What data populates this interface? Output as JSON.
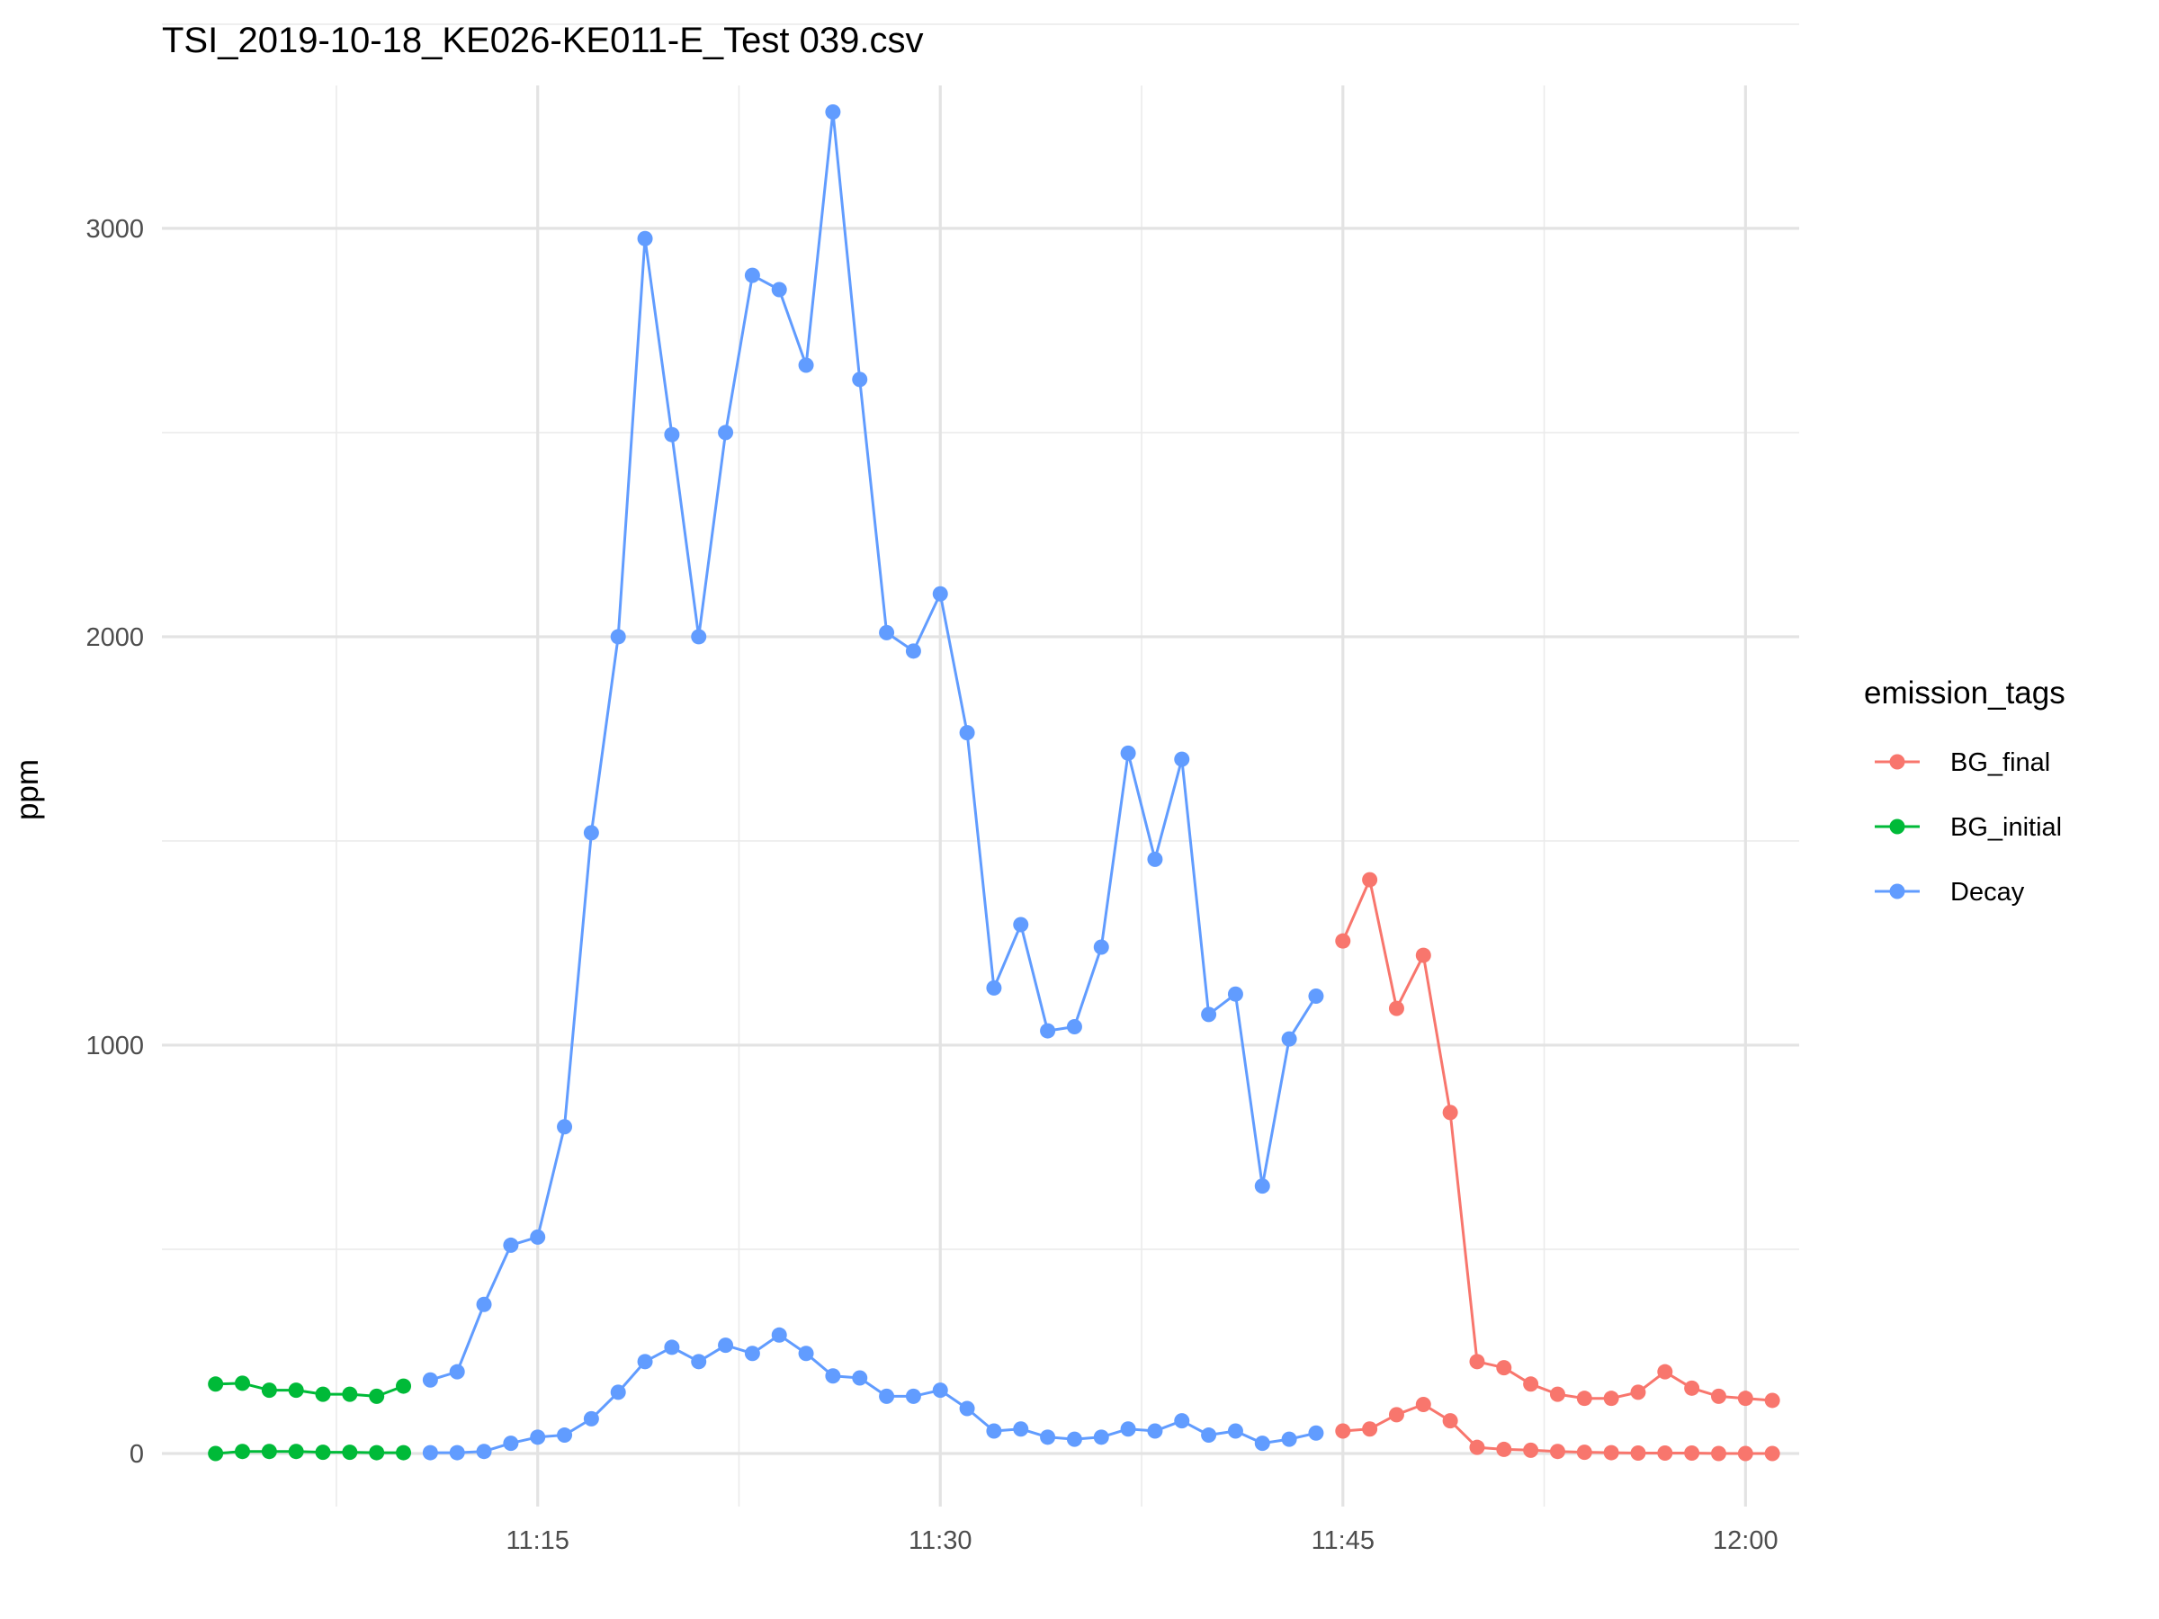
{
  "chart_data": {
    "type": "line",
    "title": "TSI_2019-10-18_KE026-KE011-E_Test 039.csv",
    "xlabel": "",
    "ylabel": "ppm",
    "x_tick_labels": [
      "11:15",
      "11:30",
      "11:45",
      "12:00"
    ],
    "y_tick_labels": [
      "0",
      "1000",
      "2000",
      "3000"
    ],
    "xlim": [
      "11:01",
      "12:02"
    ],
    "ylim": [
      -130,
      3350
    ],
    "grid": true,
    "legend": {
      "title": "emission_tags",
      "placement": "right",
      "entries": [
        "BG_final",
        "BG_initial",
        "Decay"
      ]
    },
    "series": [
      {
        "name": "BG_final",
        "color": "#F8766D",
        "lines": [
          {
            "x": [
              "11:45",
              "11:46",
              "11:47",
              "11:48",
              "11:49",
              "11:50",
              "11:51",
              "11:52",
              "11:53",
              "11:54",
              "11:55",
              "11:56",
              "11:57",
              "11:58",
              "11:59",
              "12:00",
              "12:01"
            ],
            "y": [
              1255,
              1405,
              1090,
              1220,
              835,
              225,
              210,
              170,
              145,
              135,
              135,
              150,
              200,
              160,
              140,
              135,
              130
            ]
          },
          {
            "x": [
              "11:45",
              "11:46",
              "11:47",
              "11:48",
              "11:49",
              "11:50",
              "11:51",
              "11:52",
              "11:53",
              "11:54",
              "11:55",
              "11:56",
              "11:57",
              "11:58",
              "11:59",
              "12:00",
              "12:01"
            ],
            "y": [
              55,
              60,
              95,
              120,
              80,
              15,
              10,
              8,
              5,
              3,
              2,
              1,
              1,
              1,
              0,
              0,
              0
            ]
          }
        ]
      },
      {
        "name": "BG_initial",
        "color": "#00BA38",
        "lines": [
          {
            "x": [
              "11:03",
              "11:04",
              "11:05",
              "11:06",
              "11:07",
              "11:08",
              "11:09",
              "11:10"
            ],
            "y": [
              170,
              172,
              155,
              155,
              145,
              145,
              140,
              165
            ]
          },
          {
            "x": [
              "11:03",
              "11:04",
              "11:05",
              "11:06",
              "11:07",
              "11:08",
              "11:09",
              "11:10"
            ],
            "y": [
              0,
              5,
              5,
              5,
              3,
              3,
              2,
              2
            ]
          }
        ]
      },
      {
        "name": "Decay",
        "color": "#619CFF",
        "lines": [
          {
            "x": [
              "11:11",
              "11:12",
              "11:13",
              "11:14",
              "11:15",
              "11:16",
              "11:17",
              "11:18",
              "11:19",
              "11:20",
              "11:21",
              "11:22",
              "11:23",
              "11:24",
              "11:25",
              "11:26",
              "11:27",
              "11:28",
              "11:29",
              "11:30",
              "11:31",
              "11:32",
              "11:33",
              "11:34",
              "11:35",
              "11:36",
              "11:37",
              "11:38",
              "11:39",
              "11:40",
              "11:41",
              "11:42",
              "11:43",
              "11:44"
            ],
            "y": [
              180,
              200,
              365,
              510,
              530,
              800,
              1520,
              2000,
              2975,
              2495,
              2000,
              2500,
              2885,
              2850,
              2665,
              3285,
              2630,
              2010,
              1965,
              2105,
              1765,
              1140,
              1295,
              1035,
              1045,
              1240,
              1715,
              1455,
              1700,
              1075,
              1125,
              655,
              1015,
              1120
            ]
          },
          {
            "x": [
              "11:11",
              "11:12",
              "11:13",
              "11:14",
              "11:15",
              "11:16",
              "11:17",
              "11:18",
              "11:19",
              "11:20",
              "11:21",
              "11:22",
              "11:23",
              "11:24",
              "11:25",
              "11:26",
              "11:27",
              "11:28",
              "11:29",
              "11:30",
              "11:31",
              "11:32",
              "11:33",
              "11:34",
              "11:35",
              "11:36",
              "11:37",
              "11:38",
              "11:39",
              "11:40",
              "11:41",
              "11:42",
              "11:43",
              "11:44"
            ],
            "y": [
              2,
              2,
              5,
              25,
              40,
              45,
              85,
              150,
              225,
              260,
              225,
              265,
              245,
              290,
              245,
              190,
              185,
              140,
              140,
              155,
              110,
              55,
              60,
              40,
              35,
              40,
              60,
              55,
              80,
              45,
              55,
              25,
              35,
              50
            ]
          }
        ]
      }
    ]
  }
}
